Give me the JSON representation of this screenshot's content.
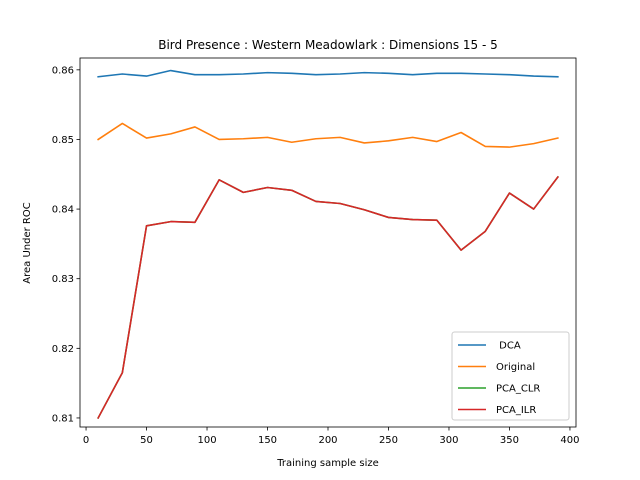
{
  "chart_data": {
    "type": "line",
    "title": "Bird Presence : Western Meadowlark : Dimensions 15 - 5",
    "xlabel": "Training sample size",
    "ylabel": "Area Under ROC",
    "xlim": [
      -5,
      405
    ],
    "ylim": [
      0.8087,
      0.8617
    ],
    "xticks": [
      0,
      50,
      100,
      150,
      200,
      250,
      300,
      350,
      400
    ],
    "xtick_labels": [
      "0",
      "50",
      "100",
      "150",
      "200",
      "250",
      "300",
      "350",
      "400"
    ],
    "yticks": [
      0.81,
      0.82,
      0.83,
      0.84,
      0.85,
      0.86
    ],
    "ytick_labels": [
      "0.81",
      "0.82",
      "0.83",
      "0.84",
      "0.85",
      "0.86"
    ],
    "grid": false,
    "legend_position": "lower-right",
    "x": [
      10,
      30,
      50,
      70,
      90,
      110,
      130,
      150,
      170,
      190,
      210,
      230,
      250,
      270,
      290,
      310,
      330,
      350,
      370,
      390
    ],
    "series": [
      {
        "name": " DCA",
        "color": "#1f77b4",
        "values": [
          0.859,
          0.8594,
          0.8591,
          0.8599,
          0.8593,
          0.8593,
          0.8594,
          0.8596,
          0.8595,
          0.8593,
          0.8594,
          0.8596,
          0.8595,
          0.8593,
          0.8595,
          0.8595,
          0.8594,
          0.8593,
          0.8591,
          0.859
        ]
      },
      {
        "name": "Original",
        "color": "#ff7f0e",
        "values": [
          0.85,
          0.8523,
          0.8502,
          0.8508,
          0.8518,
          0.85,
          0.8501,
          0.8503,
          0.8496,
          0.8501,
          0.8503,
          0.8495,
          0.8498,
          0.8503,
          0.8497,
          0.851,
          0.849,
          0.8489,
          0.8494,
          0.8502
        ]
      },
      {
        "name": "PCA_CLR",
        "color": "#2ca02c",
        "values": [
          0.81,
          0.8165,
          0.8376,
          0.8382,
          0.8381,
          0.8442,
          0.8424,
          0.8431,
          0.8427,
          0.8411,
          0.8408,
          0.8399,
          0.8388,
          0.8385,
          0.8384,
          0.8341,
          0.8368,
          0.8423,
          0.84,
          0.8446
        ]
      },
      {
        "name": "PCA_ILR",
        "color": "#d62728",
        "values": [
          0.81,
          0.8165,
          0.8376,
          0.8382,
          0.8381,
          0.8442,
          0.8424,
          0.8431,
          0.8427,
          0.8411,
          0.8408,
          0.8399,
          0.8388,
          0.8385,
          0.8384,
          0.8341,
          0.8368,
          0.8423,
          0.84,
          0.8446
        ]
      }
    ]
  }
}
